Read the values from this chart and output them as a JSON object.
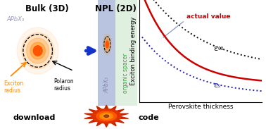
{
  "bg_left": "#c0c8e8",
  "bg_npl": "#c8e8d0",
  "bg_organic": "#e0f0e0",
  "bg_npl_strip": "#c0cce8",
  "bulk_label": "Bulk (3D)",
  "npl_label": "NPL (2D)",
  "apbx3_label": "APbX₃",
  "npl_apbx3_label": "APbX₃",
  "organic_label": "organic spacer",
  "exciton_label": "Exciton\nradius",
  "polaron_label": "Polaron\nradius",
  "download_label": "download",
  "code_label": "code",
  "curve_actual_label": "actual value",
  "curve_eps_inf_label": "ε∞",
  "curve_eps_s_label": "εₛ",
  "actual_color": "#cc0000",
  "eps_inf_color": "#111111",
  "eps_s_color": "#2222aa",
  "annotation_color": "#8899bb",
  "arrow_blue": "#1133cc",
  "exciton_orange": "#ff8800",
  "xlabel": "Perovskite thickness",
  "ylabel": "Exciton binding energy"
}
